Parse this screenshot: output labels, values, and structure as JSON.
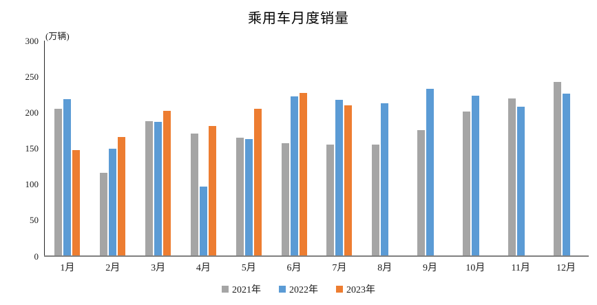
{
  "chart_data": {
    "type": "bar",
    "title": "乘用车月度销量",
    "unit_label": "(万辆)",
    "categories": [
      "1月",
      "2月",
      "3月",
      "4月",
      "5月",
      "6月",
      "7月",
      "8月",
      "9月",
      "10月",
      "11月",
      "12月"
    ],
    "series": [
      {
        "name": "2021年",
        "color": "#A5A5A5",
        "values": [
          204.5,
          115.6,
          187.4,
          170.4,
          164.6,
          156.9,
          155.1,
          155.2,
          175.1,
          200.7,
          219.2,
          242.2
        ]
      },
      {
        "name": "2022年",
        "color": "#5B9BD5",
        "values": [
          218.6,
          148.7,
          186.4,
          96.5,
          162.3,
          222.2,
          217.4,
          212.5,
          233.2,
          223.1,
          207.9,
          226.3
        ]
      },
      {
        "name": "2023年",
        "color": "#ED7D31",
        "values": [
          146.9,
          165.3,
          201.7,
          181.1,
          205.1,
          226.8,
          210.0,
          null,
          null,
          null,
          null,
          null
        ]
      }
    ],
    "y_ticks": [
      300,
      250,
      200,
      150,
      100,
      50,
      0
    ],
    "ylim": [
      0,
      300
    ],
    "grid": false,
    "legend_position": "bottom",
    "background_color": "#FFFFFF",
    "axis_line_color": "#808080"
  }
}
